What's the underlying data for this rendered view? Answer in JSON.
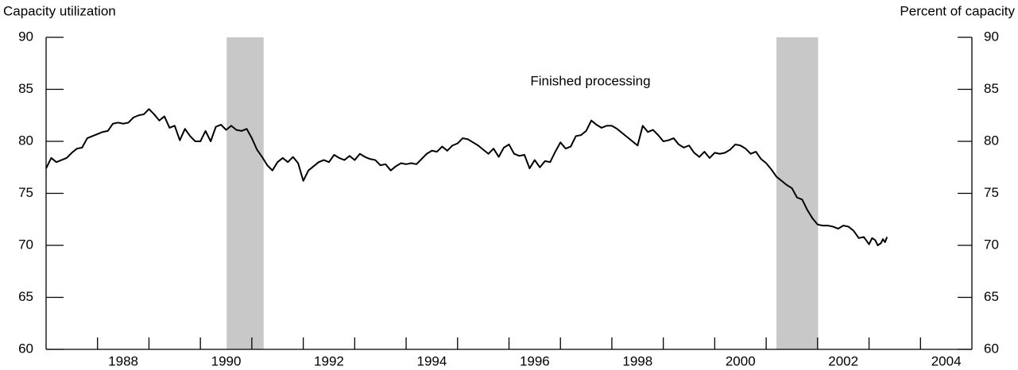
{
  "chart_data": {
    "type": "line",
    "title": "Capacity utilization",
    "subtitle": "Percent of capacity",
    "annotation": "Finished processing",
    "xlim": [
      1987,
      2005
    ],
    "xticks": [
      1988,
      1989,
      1990,
      1991,
      1992,
      1993,
      1994,
      1995,
      1996,
      1997,
      1998,
      1999,
      2000,
      2001,
      2002,
      2003,
      2004
    ],
    "xtick_labels": [
      {
        "value": 1988.5,
        "label": "1988"
      },
      {
        "value": 1990.5,
        "label": "1990"
      },
      {
        "value": 1992.5,
        "label": "1992"
      },
      {
        "value": 1994.5,
        "label": "1994"
      },
      {
        "value": 1996.5,
        "label": "1996"
      },
      {
        "value": 1998.5,
        "label": "1998"
      },
      {
        "value": 2000.5,
        "label": "2000"
      },
      {
        "value": 2002.5,
        "label": "2002"
      },
      {
        "value": 2004.5,
        "label": "2004"
      }
    ],
    "ylim": [
      60,
      90
    ],
    "yticks": [
      60,
      65,
      70,
      75,
      80,
      85,
      90
    ],
    "y2lim": [
      60,
      90
    ],
    "y2ticks": [
      60,
      65,
      70,
      75,
      80,
      85,
      90
    ],
    "shaded_periods": [
      [
        1990.51,
        1991.23
      ],
      [
        2001.2,
        2002.01
      ]
    ],
    "shade_color": "#c8c8c8",
    "series": [
      {
        "name": "Finished processing",
        "color": "#000000",
        "x": [
          1987,
          1987.1,
          1987.2,
          1987.3,
          1987.4,
          1987.5,
          1987.6,
          1987.7,
          1987.8,
          1987.9,
          1988,
          1988.1,
          1988.2,
          1988.3,
          1988.4,
          1988.5,
          1988.6,
          1988.7,
          1988.8,
          1988.9,
          1989,
          1989.1,
          1989.2,
          1989.3,
          1989.4,
          1989.5,
          1989.6,
          1989.7,
          1989.8,
          1989.9,
          1990,
          1990.1,
          1990.2,
          1990.3,
          1990.4,
          1990.5,
          1990.6,
          1990.7,
          1990.8,
          1990.9,
          1991,
          1991.1,
          1991.2,
          1991.3,
          1991.4,
          1991.5,
          1991.6,
          1991.7,
          1991.8,
          1991.9,
          1992,
          1992.1,
          1992.2,
          1992.3,
          1992.4,
          1992.5,
          1992.6,
          1992.7,
          1992.8,
          1992.9,
          1993,
          1993.1,
          1993.2,
          1993.3,
          1993.4,
          1993.5,
          1993.6,
          1993.7,
          1993.8,
          1993.9,
          1994,
          1994.1,
          1994.2,
          1994.3,
          1994.4,
          1994.5,
          1994.6,
          1994.7,
          1994.8,
          1994.9,
          1995,
          1995.1,
          1995.2,
          1995.3,
          1995.4,
          1995.5,
          1995.6,
          1995.7,
          1995.8,
          1995.9,
          1996,
          1996.1,
          1996.2,
          1996.3,
          1996.4,
          1996.5,
          1996.6,
          1996.7,
          1996.8,
          1996.9,
          1997,
          1997.1,
          1997.2,
          1997.3,
          1997.4,
          1997.5,
          1997.6,
          1997.7,
          1997.8,
          1997.9,
          1998,
          1998.1,
          1998.2,
          1998.3,
          1998.4,
          1998.5,
          1998.6,
          1998.7,
          1998.8,
          1998.9,
          1999,
          1999.1,
          1999.2,
          1999.3,
          1999.4,
          1999.5,
          1999.6,
          1999.7,
          1999.8,
          1999.9,
          2000,
          2000.1,
          2000.2,
          2000.3,
          2000.4,
          2000.5,
          2000.6,
          2000.7,
          2000.8,
          2000.9,
          2001,
          2001.1,
          2001.2,
          2001.3,
          2001.4,
          2001.5,
          2001.6,
          2001.7,
          2001.8,
          2001.9,
          2002,
          2002.1,
          2002.2,
          2002.3,
          2002.4,
          2002.5,
          2002.6,
          2002.7,
          2002.8,
          2002.9,
          2003,
          2003.06,
          2003.12,
          2003.17,
          2003.23,
          2003.27,
          2003.31,
          2003.35
        ],
        "values": [
          77.4,
          78.4,
          78.0,
          78.2,
          78.4,
          78.9,
          79.3,
          79.4,
          80.3,
          80.5,
          80.7,
          80.9,
          81.0,
          81.7,
          81.8,
          81.7,
          81.8,
          82.3,
          82.5,
          82.6,
          83.1,
          82.6,
          82.0,
          82.4,
          81.3,
          81.5,
          80.1,
          81.2,
          80.5,
          80.0,
          80.0,
          81.0,
          80.0,
          81.4,
          81.6,
          81.1,
          81.5,
          81.1,
          81.0,
          81.2,
          80.3,
          79.2,
          78.5,
          77.7,
          77.2,
          78.0,
          78.4,
          78.0,
          78.5,
          77.9,
          76.2,
          77.2,
          77.6,
          78.0,
          78.2,
          78.0,
          78.7,
          78.4,
          78.2,
          78.6,
          78.2,
          78.8,
          78.5,
          78.3,
          78.2,
          77.7,
          77.8,
          77.2,
          77.6,
          77.9,
          77.8,
          77.9,
          77.8,
          78.3,
          78.8,
          79.1,
          79.0,
          79.5,
          79.1,
          79.6,
          79.8,
          80.3,
          80.2,
          79.9,
          79.6,
          79.2,
          78.8,
          79.3,
          78.5,
          79.4,
          79.7,
          78.8,
          78.6,
          78.7,
          77.4,
          78.2,
          77.5,
          78.1,
          78.0,
          79.0,
          79.9,
          79.3,
          79.5,
          80.5,
          80.6,
          81.0,
          82.0,
          81.6,
          81.3,
          81.5,
          81.5,
          81.2,
          80.8,
          80.4,
          80.0,
          79.6,
          81.5,
          80.9,
          81.1,
          80.6,
          80.0,
          80.1,
          80.3,
          79.7,
          79.4,
          79.6,
          78.9,
          78.5,
          79.0,
          78.4,
          78.9,
          78.8,
          78.9,
          79.2,
          79.7,
          79.6,
          79.3,
          78.8,
          79.0,
          78.3,
          77.9,
          77.3,
          76.6,
          76.2,
          75.8,
          75.5,
          74.6,
          74.4,
          73.4,
          72.6,
          72.0,
          71.9,
          71.9,
          71.8,
          71.6,
          71.9,
          71.8,
          71.4,
          70.7,
          70.8,
          70.1,
          70.7,
          70.5,
          70.0,
          70.2,
          70.6,
          70.3,
          70.8
        ]
      }
    ]
  }
}
